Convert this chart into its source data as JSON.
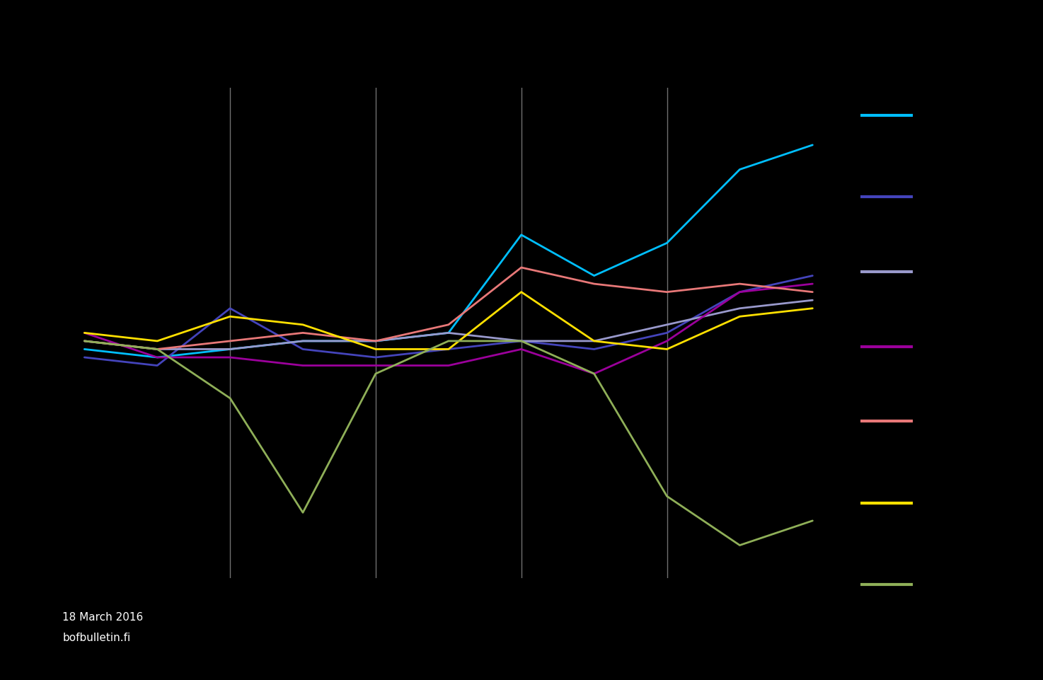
{
  "background_color": "#000000",
  "footnote_line1": "18 March 2016",
  "footnote_line2": "bofbulletin.fi",
  "series": [
    {
      "name": "cyan",
      "color": "#00BFFF",
      "linewidth": 2.0,
      "values": [
        5.0,
        4.5,
        5.0,
        5.5,
        5.5,
        6.0,
        12.0,
        9.5,
        11.5,
        16.0,
        17.5
      ]
    },
    {
      "name": "dark_blue_purple",
      "color": "#4444BB",
      "linewidth": 2.0,
      "values": [
        4.5,
        4.0,
        7.5,
        5.0,
        4.5,
        5.0,
        5.5,
        5.0,
        6.0,
        8.5,
        9.5
      ]
    },
    {
      "name": "light_lavender",
      "color": "#9999CC",
      "linewidth": 2.0,
      "values": [
        5.5,
        5.0,
        5.0,
        5.5,
        5.5,
        6.0,
        5.5,
        5.5,
        6.5,
        7.5,
        8.0
      ]
    },
    {
      "name": "magenta_purple",
      "color": "#9B009B",
      "linewidth": 2.0,
      "values": [
        6.0,
        4.5,
        4.5,
        4.0,
        4.0,
        4.0,
        5.0,
        3.5,
        5.5,
        8.5,
        9.0
      ]
    },
    {
      "name": "salmon_pink",
      "color": "#E87878",
      "linewidth": 2.0,
      "values": [
        5.5,
        5.0,
        5.5,
        6.0,
        5.5,
        6.5,
        10.0,
        9.0,
        8.5,
        9.0,
        8.5
      ]
    },
    {
      "name": "yellow",
      "color": "#FFE000",
      "linewidth": 2.0,
      "values": [
        6.0,
        5.5,
        7.0,
        6.5,
        5.0,
        5.0,
        8.5,
        5.5,
        5.0,
        7.0,
        7.5
      ]
    },
    {
      "name": "olive_green",
      "color": "#8FAF58",
      "linewidth": 2.0,
      "values": [
        5.5,
        5.0,
        2.0,
        -5.0,
        3.5,
        5.5,
        5.5,
        3.5,
        -4.0,
        -7.0,
        -5.5
      ]
    }
  ],
  "vline_positions": [
    2,
    4,
    6,
    8
  ],
  "ylim": [
    -9,
    21
  ],
  "xlim": [
    -0.3,
    10.3
  ],
  "legend_colors": [
    "#00BFFF",
    "#4444BB",
    "#9999CC",
    "#9B009B",
    "#E87878",
    "#FFE000",
    "#8FAF58"
  ],
  "legend_y_fracs": [
    0.83,
    0.71,
    0.6,
    0.49,
    0.38,
    0.26,
    0.14
  ]
}
